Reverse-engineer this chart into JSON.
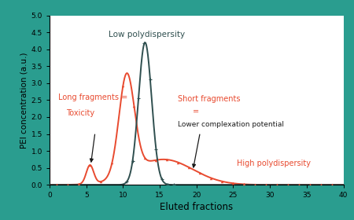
{
  "background_color": "#2a9d8f",
  "plot_bg": "#ffffff",
  "xlabel": "Eluted fractions",
  "ylabel": "PEI concentration (a.u.)",
  "xlim": [
    0,
    40
  ],
  "ylim": [
    0,
    5
  ],
  "yticks": [
    0,
    0.5,
    1,
    1.5,
    2,
    2.5,
    3,
    3.5,
    4,
    4.5,
    5
  ],
  "xticks": [
    0,
    5,
    10,
    15,
    20,
    25,
    30,
    35,
    40
  ],
  "dark_color": "#2f4f4f",
  "red_color": "#e84a2f",
  "dark_peak": {
    "mu": 13.0,
    "sigma": 0.9,
    "amp": 4.2
  },
  "red_small_hump": {
    "mu": 5.5,
    "sigma": 0.5,
    "amp": 0.55
  },
  "red_main_peak": {
    "mu": 10.5,
    "sigma": 1.05,
    "amp": 2.95
  },
  "red_tail": {
    "mu": 15.5,
    "sigma": 4.0,
    "amp": 0.75
  }
}
